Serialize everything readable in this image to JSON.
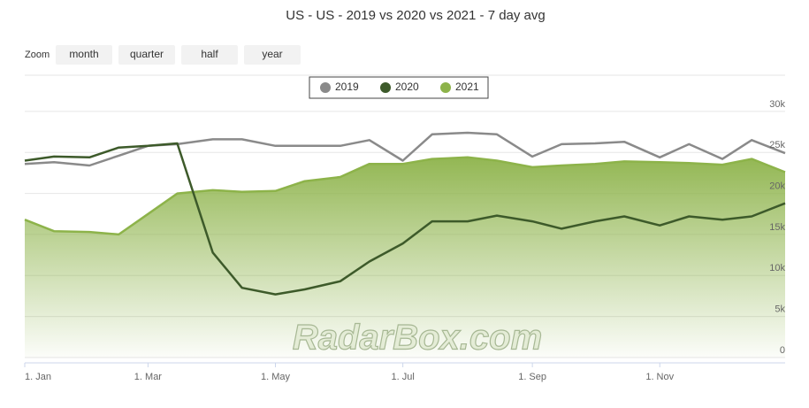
{
  "chart_data": {
    "type": "line",
    "title": "US - US - 2019 vs 2020 vs 2021 - 7 day avg",
    "zoom": {
      "label": "Zoom",
      "buttons": [
        "month",
        "quarter",
        "half",
        "year"
      ]
    },
    "watermark": "RadarBox.com",
    "x": [
      0,
      14,
      31,
      45,
      59,
      73,
      90,
      104,
      120,
      134,
      151,
      165,
      181,
      195,
      212,
      226,
      243,
      257,
      273,
      287,
      304,
      318,
      334,
      348,
      364
    ],
    "xlim": [
      0,
      364
    ],
    "xticks": [
      {
        "value": 0,
        "label": "1. Jan"
      },
      {
        "value": 59,
        "label": "1. Mar"
      },
      {
        "value": 120,
        "label": "1. May"
      },
      {
        "value": 181,
        "label": "1. Jul"
      },
      {
        "value": 243,
        "label": "1. Sep"
      },
      {
        "value": 304,
        "label": "1. Nov"
      }
    ],
    "ylim": [
      0,
      35000
    ],
    "yticks": [
      {
        "value": 0,
        "label": "0"
      },
      {
        "value": 5000,
        "label": "5k"
      },
      {
        "value": 10000,
        "label": "10k"
      },
      {
        "value": 15000,
        "label": "15k"
      },
      {
        "value": 20000,
        "label": "20k"
      },
      {
        "value": 25000,
        "label": "25k"
      },
      {
        "value": 30000,
        "label": "30k"
      }
    ],
    "grid": true,
    "series": [
      {
        "name": "2019",
        "color": "#8a8a8a",
        "area": false,
        "values": [
          23600,
          23800,
          23400,
          24600,
          25800,
          26000,
          26600,
          26600,
          25800,
          25800,
          25800,
          26500,
          24000,
          27200,
          27400,
          27200,
          24500,
          26000,
          26100,
          26300,
          24400,
          26000,
          24200,
          26500,
          24900
        ]
      },
      {
        "name": "2020",
        "color": "#3d5a2a",
        "area": false,
        "values": [
          24000,
          24500,
          24400,
          25600,
          25800,
          26100,
          12800,
          8500,
          7700,
          8300,
          9300,
          11700,
          13900,
          16600,
          16600,
          17300,
          16600,
          15700,
          16600,
          17200,
          16100,
          17200,
          16800,
          17200,
          18800
        ]
      },
      {
        "name": "2021",
        "color": "#8db34a",
        "area": true,
        "values": [
          16800,
          15400,
          15300,
          15000,
          17500,
          20000,
          20400,
          20200,
          20300,
          21500,
          22000,
          23600,
          23600,
          24200,
          24400,
          24000,
          23200,
          23400,
          23600,
          23900,
          23800,
          23700,
          23500,
          24200,
          22600
        ]
      }
    ]
  }
}
